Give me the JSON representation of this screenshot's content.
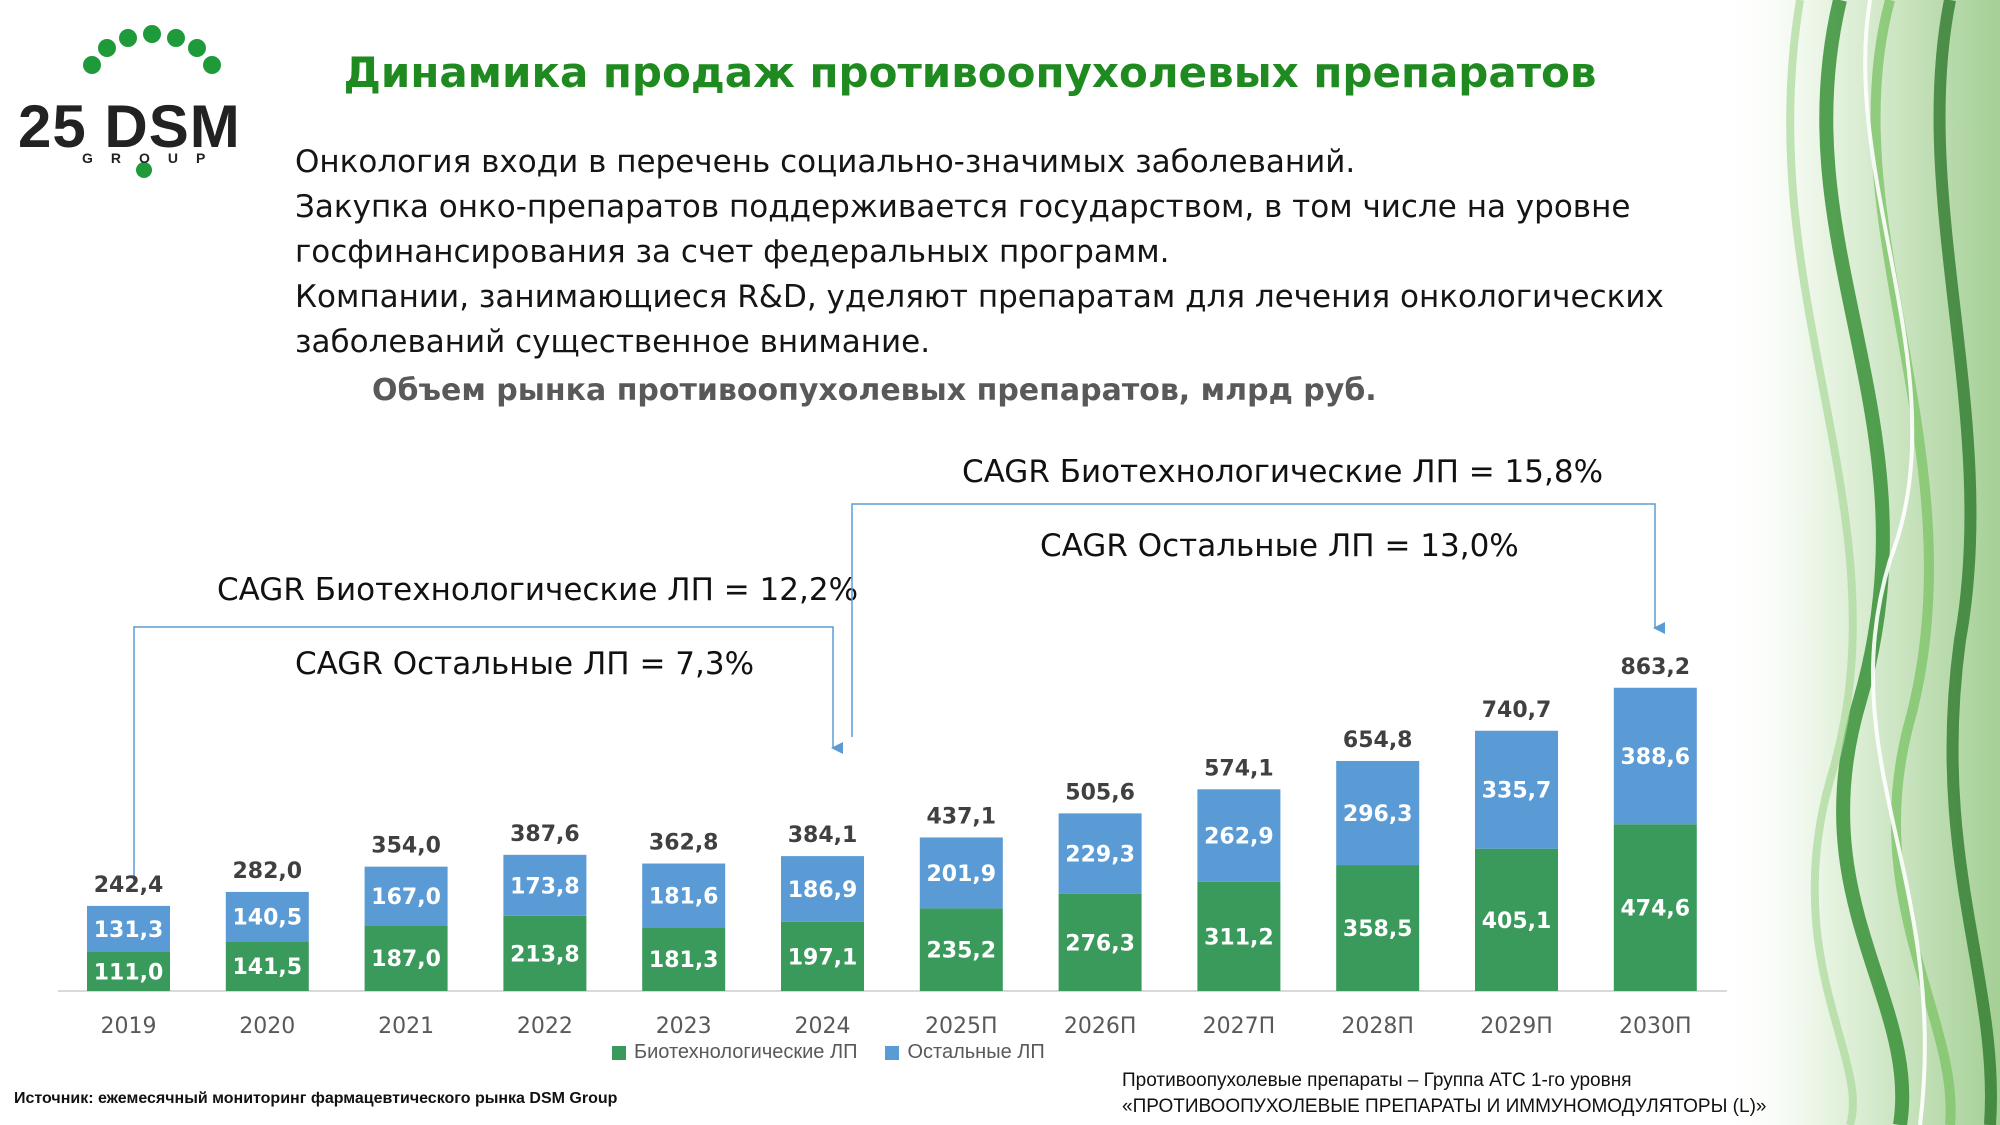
{
  "logo": {
    "text": "25 DSM",
    "group": "GROUP"
  },
  "title": "Динамика продаж противоопухолевых препаратов",
  "intro": [
    "Онкология входи в перечень социально-значимых заболеваний.",
    "Закупка онко-препаратов поддерживается государством, в том числе на уровне",
    "госфинансирования за счет федеральных программ.",
    "Компании, занимающиеся R&D, уделяют препаратам для лечения онкологических",
    "заболеваний существенное внимание."
  ],
  "annotations": {
    "left_bio": "CAGR Биотехнологические ЛП = 12,2%",
    "left_other": "CAGR Остальные ЛП = 7,3%",
    "right_bio": "CAGR Биотехнологические ЛП = 15,8%",
    "right_other": "CAGR Остальные ЛП = 13,0%"
  },
  "colors": {
    "bio": "#3a9a5b",
    "other": "#5b9bd5",
    "title": "#1f8a1f",
    "arrow": "#5b9bd5"
  },
  "chart_data": {
    "type": "bar",
    "stacked": true,
    "title": "Объем рынка противоопухолевых препаратов, млрд руб.",
    "categories": [
      "2019",
      "2020",
      "2021",
      "2022",
      "2023",
      "2024",
      "2025П",
      "2026П",
      "2027П",
      "2028П",
      "2029П",
      "2030П"
    ],
    "series": [
      {
        "name": "Биотехнологические ЛП",
        "labels": [
          "111,0",
          "141,5",
          "187,0",
          "213,8",
          "181,3",
          "197,1",
          "235,2",
          "276,3",
          "311,2",
          "358,5",
          "405,1",
          "474,6"
        ],
        "values": [
          111.0,
          141.5,
          187.0,
          213.8,
          181.3,
          197.1,
          235.2,
          276.3,
          311.2,
          358.5,
          405.1,
          474.6
        ]
      },
      {
        "name": "Остальные ЛП",
        "labels": [
          "131,3",
          "140,5",
          "167,0",
          "173,8",
          "181,6",
          "186,9",
          "201,9",
          "229,3",
          "262,9",
          "296,3",
          "335,7",
          "388,6"
        ],
        "values": [
          131.3,
          140.5,
          167.0,
          173.8,
          181.6,
          186.9,
          201.9,
          229.3,
          262.9,
          296.3,
          335.7,
          388.6
        ]
      }
    ],
    "totals": [
      "242,4",
      "282,0",
      "354,0",
      "387,6",
      "362,8",
      "384,1",
      "437,1",
      "505,6",
      "574,1",
      "654,8",
      "740,7",
      "863,2"
    ],
    "ylim": [
      0,
      900
    ],
    "legend": [
      "Биотехнологические ЛП",
      "Остальные ЛП"
    ],
    "legend_position": "bottom"
  },
  "source": "Источник: ежемесячный мониторинг фармацевтического рынка DSM Group",
  "note": [
    "Противоопухолевые препараты – Группа АТС 1-го уровня",
    "«ПРОТИВООПУХОЛЕВЫЕ ПРЕПАРАТЫ И ИММУНОМОДУЛЯТОРЫ (L)»"
  ]
}
